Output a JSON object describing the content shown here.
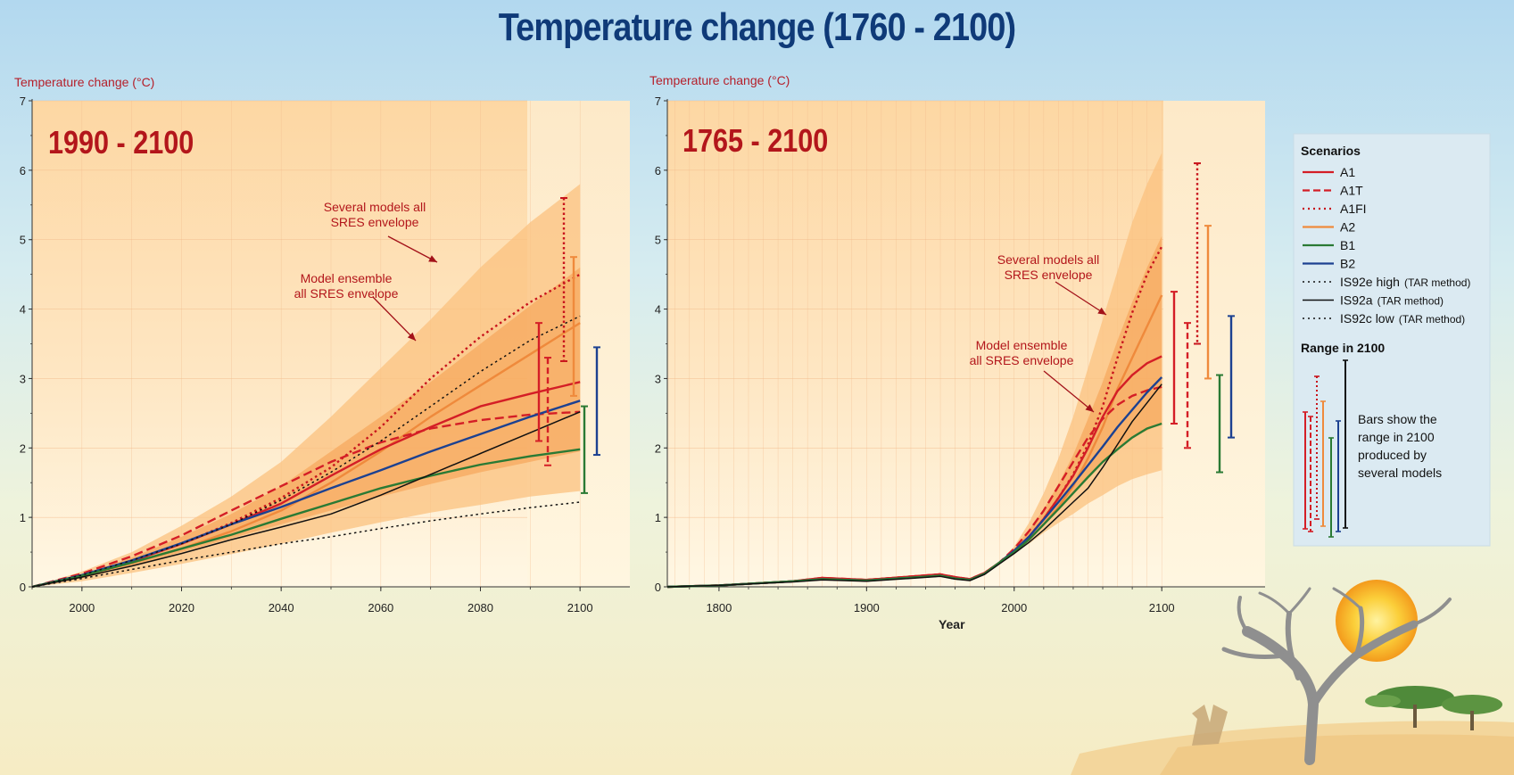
{
  "title": "Temperature change (1760 - 2100)",
  "chart_data": [
    {
      "type": "line",
      "title": "1990 - 2100",
      "ylabel": "Temperature change (°C)",
      "xlabel": "",
      "xlim": [
        1990,
        2110
      ],
      "ylim": [
        0,
        7
      ],
      "x_ticks": [
        "2000",
        "2020",
        "2040",
        "2060",
        "2080",
        "2100"
      ],
      "y_ticks": [
        "0",
        "1",
        "2",
        "3",
        "4",
        "5",
        "6",
        "7"
      ],
      "grid": true,
      "annotations": [
        {
          "text": [
            "Several models all",
            "SRES envelope"
          ],
          "at": [
            2070,
            4.9
          ]
        },
        {
          "text": [
            "Model ensemble",
            "all SRES envelope"
          ],
          "at": [
            2065,
            3.55
          ]
        }
      ],
      "envelopes": [
        {
          "name": "Several models all SRES envelope",
          "x": [
            1990,
            2000,
            2010,
            2020,
            2030,
            2040,
            2050,
            2060,
            2070,
            2080,
            2090,
            2100
          ],
          "low": [
            0,
            0.08,
            0.2,
            0.33,
            0.47,
            0.62,
            0.78,
            0.93,
            1.07,
            1.18,
            1.3,
            1.38
          ],
          "high": [
            0,
            0.22,
            0.5,
            0.88,
            1.3,
            1.8,
            2.45,
            3.15,
            3.85,
            4.6,
            5.25,
            5.8
          ]
        },
        {
          "name": "Model ensemble all SRES envelope",
          "x": [
            1990,
            2000,
            2010,
            2020,
            2030,
            2040,
            2050,
            2060,
            2070,
            2080,
            2090,
            2100
          ],
          "low": [
            0,
            0.12,
            0.3,
            0.5,
            0.7,
            0.9,
            1.1,
            1.3,
            1.48,
            1.65,
            1.8,
            1.95
          ],
          "high": [
            0,
            0.18,
            0.42,
            0.72,
            1.05,
            1.45,
            1.95,
            2.45,
            2.95,
            3.5,
            4.05,
            4.6
          ]
        }
      ],
      "series": [
        {
          "name": "A1FI",
          "style": "dotted",
          "color": "#c8141c",
          "x": [
            1990,
            2000,
            2010,
            2020,
            2030,
            2040,
            2050,
            2060,
            2070,
            2080,
            2090,
            2100
          ],
          "y": [
            0,
            0.16,
            0.37,
            0.62,
            0.92,
            1.28,
            1.72,
            2.3,
            3.0,
            3.6,
            4.1,
            4.5
          ]
        },
        {
          "name": "A2",
          "style": "solid",
          "color": "#ef8a3c",
          "x": [
            1990,
            2000,
            2010,
            2020,
            2030,
            2040,
            2050,
            2060,
            2070,
            2080,
            2090,
            2100
          ],
          "y": [
            0,
            0.16,
            0.34,
            0.55,
            0.8,
            1.1,
            1.5,
            1.95,
            2.45,
            2.9,
            3.35,
            3.8
          ]
        },
        {
          "name": "A1",
          "style": "solid",
          "color": "#d41e26",
          "x": [
            1990,
            2000,
            2010,
            2020,
            2030,
            2040,
            2050,
            2060,
            2070,
            2080,
            2090,
            2100
          ],
          "y": [
            0,
            0.16,
            0.37,
            0.62,
            0.9,
            1.2,
            1.6,
            1.98,
            2.3,
            2.6,
            2.78,
            2.95
          ]
        },
        {
          "name": "A1T",
          "style": "dashed",
          "color": "#d41e26",
          "x": [
            1990,
            2000,
            2010,
            2020,
            2030,
            2040,
            2050,
            2060,
            2070,
            2080,
            2090,
            2100
          ],
          "y": [
            0,
            0.19,
            0.44,
            0.74,
            1.1,
            1.45,
            1.8,
            2.08,
            2.28,
            2.4,
            2.48,
            2.52
          ]
        },
        {
          "name": "B2",
          "style": "solid",
          "color": "#1c4191",
          "x": [
            1990,
            2000,
            2010,
            2020,
            2030,
            2040,
            2050,
            2060,
            2070,
            2080,
            2090,
            2100
          ],
          "y": [
            0,
            0.17,
            0.38,
            0.63,
            0.9,
            1.15,
            1.42,
            1.68,
            1.95,
            2.2,
            2.45,
            2.68
          ]
        },
        {
          "name": "B1",
          "style": "solid",
          "color": "#2a7a34",
          "x": [
            1990,
            2000,
            2010,
            2020,
            2030,
            2040,
            2050,
            2060,
            2070,
            2080,
            2090,
            2100
          ],
          "y": [
            0,
            0.16,
            0.35,
            0.55,
            0.75,
            0.98,
            1.2,
            1.42,
            1.6,
            1.76,
            1.88,
            1.98
          ]
        },
        {
          "name": "IS92e high",
          "style": "dotted",
          "color": "#111111",
          "x": [
            1990,
            2000,
            2010,
            2020,
            2030,
            2040,
            2050,
            2060,
            2070,
            2080,
            2090,
            2100
          ],
          "y": [
            0,
            0.17,
            0.38,
            0.62,
            0.9,
            1.25,
            1.65,
            2.1,
            2.6,
            3.1,
            3.55,
            3.9
          ]
        },
        {
          "name": "IS92a",
          "style": "solid",
          "color": "#111111",
          "x": [
            1990,
            2000,
            2010,
            2020,
            2030,
            2040,
            2050,
            2060,
            2070,
            2080,
            2090,
            2100
          ],
          "y": [
            0,
            0.14,
            0.3,
            0.48,
            0.68,
            0.86,
            1.05,
            1.32,
            1.62,
            1.92,
            2.22,
            2.52
          ]
        },
        {
          "name": "IS92c low",
          "style": "dotted",
          "color": "#111111",
          "x": [
            1990,
            2000,
            2010,
            2020,
            2030,
            2040,
            2050,
            2060,
            2070,
            2080,
            2090,
            2100
          ],
          "y": [
            0,
            0.12,
            0.25,
            0.38,
            0.5,
            0.62,
            0.72,
            0.84,
            0.95,
            1.05,
            1.14,
            1.22
          ]
        }
      ],
      "ranges_2100": [
        {
          "name": "A1",
          "style": "solid",
          "color": "#d41e26",
          "low": 2.1,
          "high": 3.8
        },
        {
          "name": "A1T",
          "style": "dashed",
          "color": "#d41e26",
          "low": 1.75,
          "high": 3.3
        },
        {
          "name": "A1FI",
          "style": "dotted",
          "color": "#c8141c",
          "low": 3.25,
          "high": 5.6
        },
        {
          "name": "A2",
          "style": "solid",
          "color": "#ef8a3c",
          "low": 2.75,
          "high": 4.75
        },
        {
          "name": "B1",
          "style": "solid",
          "color": "#2a7a34",
          "low": 1.35,
          "high": 2.6
        },
        {
          "name": "B2",
          "style": "solid",
          "color": "#1c4191",
          "low": 1.9,
          "high": 3.45
        }
      ]
    },
    {
      "type": "line",
      "title": "1765 - 2100",
      "ylabel": "Temperature change (°C)",
      "xlabel": "Year",
      "xlim": [
        1765,
        2170
      ],
      "ylim": [
        0,
        7
      ],
      "x_ticks": [
        "1800",
        "1900",
        "2000",
        "2100"
      ],
      "y_ticks": [
        "0",
        "1",
        "2",
        "3",
        "4",
        "5",
        "6",
        "7"
      ],
      "grid": true,
      "annotations": [
        {
          "text": [
            "Several models all",
            "SRES envelope"
          ],
          "at": [
            2055,
            4.6
          ]
        },
        {
          "text": [
            "Model ensemble",
            "all SRES envelope"
          ],
          "at": [
            2020,
            3.4
          ]
        }
      ],
      "envelopes": [
        {
          "name": "Several models all SRES envelope",
          "x": [
            1990,
            2000,
            2010,
            2020,
            2030,
            2040,
            2050,
            2060,
            2070,
            2080,
            2090,
            2100
          ],
          "low": [
            0.35,
            0.5,
            0.62,
            0.78,
            0.92,
            1.05,
            1.2,
            1.32,
            1.45,
            1.55,
            1.62,
            1.68
          ],
          "high": [
            0.35,
            0.58,
            0.92,
            1.35,
            1.85,
            2.45,
            3.15,
            3.85,
            4.55,
            5.25,
            5.8,
            6.25
          ]
        },
        {
          "name": "Model ensemble all SRES envelope",
          "x": [
            1990,
            2000,
            2010,
            2020,
            2030,
            2040,
            2050,
            2060,
            2070,
            2080,
            2090,
            2100
          ],
          "low": [
            0.35,
            0.5,
            0.68,
            0.9,
            1.12,
            1.35,
            1.6,
            1.8,
            2.0,
            2.15,
            2.25,
            2.35
          ],
          "high": [
            0.35,
            0.55,
            0.82,
            1.12,
            1.48,
            1.9,
            2.42,
            2.95,
            3.55,
            4.1,
            4.6,
            5.05
          ]
        }
      ],
      "series": [
        {
          "name": "A1FI",
          "style": "dotted",
          "color": "#c8141c",
          "x": [
            1765,
            1800,
            1850,
            1870,
            1900,
            1950,
            1960,
            1970,
            1980,
            1990,
            2000,
            2010,
            2020,
            2030,
            2040,
            2050,
            2060,
            2070,
            2080,
            2090,
            2100
          ],
          "y": [
            0,
            0.02,
            0.08,
            0.12,
            0.1,
            0.18,
            0.13,
            0.1,
            0.2,
            0.35,
            0.52,
            0.72,
            0.98,
            1.28,
            1.62,
            2.05,
            2.6,
            3.3,
            3.95,
            4.5,
            4.9
          ]
        },
        {
          "name": "A2",
          "style": "solid",
          "color": "#ef8a3c",
          "x": [
            1765,
            1800,
            1850,
            1870,
            1900,
            1950,
            1960,
            1970,
            1980,
            1990,
            2000,
            2010,
            2020,
            2030,
            2040,
            2050,
            2060,
            2070,
            2080,
            2090,
            2100
          ],
          "y": [
            0,
            0.02,
            0.08,
            0.12,
            0.1,
            0.18,
            0.13,
            0.1,
            0.2,
            0.35,
            0.5,
            0.68,
            0.9,
            1.15,
            1.45,
            1.85,
            2.3,
            2.85,
            3.3,
            3.75,
            4.2
          ]
        },
        {
          "name": "A1",
          "style": "solid",
          "color": "#d41e26",
          "x": [
            1765,
            1800,
            1850,
            1870,
            1900,
            1950,
            1960,
            1970,
            1980,
            1990,
            2000,
            2010,
            2020,
            2030,
            2040,
            2050,
            2060,
            2070,
            2080,
            2090,
            2100
          ],
          "y": [
            0,
            0.02,
            0.08,
            0.13,
            0.1,
            0.18,
            0.14,
            0.11,
            0.2,
            0.35,
            0.52,
            0.72,
            0.98,
            1.28,
            1.6,
            2.0,
            2.45,
            2.82,
            3.05,
            3.22,
            3.32
          ]
        },
        {
          "name": "A1T",
          "style": "dashed",
          "color": "#d41e26",
          "x": [
            1765,
            1800,
            1850,
            1870,
            1900,
            1950,
            1960,
            1970,
            1980,
            1990,
            2000,
            2010,
            2020,
            2030,
            2040,
            2050,
            2060,
            2070,
            2080,
            2090,
            2100
          ],
          "y": [
            0,
            0.02,
            0.08,
            0.13,
            0.1,
            0.18,
            0.14,
            0.11,
            0.2,
            0.35,
            0.55,
            0.8,
            1.1,
            1.45,
            1.8,
            2.15,
            2.42,
            2.62,
            2.75,
            2.83,
            2.88
          ]
        },
        {
          "name": "B2",
          "style": "solid",
          "color": "#1c4191",
          "x": [
            1765,
            1800,
            1850,
            1870,
            1900,
            1950,
            1960,
            1970,
            1980,
            1990,
            2000,
            2010,
            2020,
            2030,
            2040,
            2050,
            2060,
            2070,
            2080,
            2090,
            2100
          ],
          "y": [
            0,
            0.02,
            0.08,
            0.11,
            0.09,
            0.16,
            0.12,
            0.1,
            0.19,
            0.35,
            0.52,
            0.72,
            0.97,
            1.22,
            1.48,
            1.75,
            2.02,
            2.3,
            2.55,
            2.8,
            3.02
          ]
        },
        {
          "name": "B1",
          "style": "solid",
          "color": "#2a7a34",
          "x": [
            1765,
            1800,
            1850,
            1870,
            1900,
            1950,
            1960,
            1970,
            1980,
            1990,
            2000,
            2010,
            2020,
            2030,
            2040,
            2050,
            2060,
            2070,
            2080,
            2090,
            2100
          ],
          "y": [
            0,
            0.02,
            0.08,
            0.11,
            0.09,
            0.16,
            0.12,
            0.1,
            0.19,
            0.35,
            0.5,
            0.68,
            0.9,
            1.12,
            1.35,
            1.58,
            1.8,
            1.98,
            2.15,
            2.28,
            2.35
          ]
        },
        {
          "name": "IS92a",
          "style": "solid",
          "color": "#111111",
          "x": [
            1765,
            1800,
            1850,
            1870,
            1900,
            1950,
            1960,
            1970,
            1980,
            1990,
            2000,
            2010,
            2020,
            2030,
            2040,
            2050,
            2060,
            2070,
            2080,
            2090,
            2100
          ],
          "y": [
            0,
            0.02,
            0.07,
            0.1,
            0.08,
            0.15,
            0.11,
            0.09,
            0.18,
            0.33,
            0.48,
            0.64,
            0.82,
            1.02,
            1.22,
            1.42,
            1.72,
            2.05,
            2.38,
            2.65,
            2.92
          ]
        }
      ],
      "ranges_2100": [
        {
          "name": "A1",
          "style": "solid",
          "color": "#d41e26",
          "low": 2.35,
          "high": 4.25
        },
        {
          "name": "A1T",
          "style": "dashed",
          "color": "#d41e26",
          "low": 2.0,
          "high": 3.8
        },
        {
          "name": "A1FI",
          "style": "dotted",
          "color": "#c8141c",
          "low": 3.5,
          "high": 6.1
        },
        {
          "name": "A2",
          "style": "solid",
          "color": "#ef8a3c",
          "low": 3.0,
          "high": 5.2
        },
        {
          "name": "B1",
          "style": "solid",
          "color": "#2a7a34",
          "low": 1.65,
          "high": 3.05
        },
        {
          "name": "B2",
          "style": "solid",
          "color": "#1c4191",
          "low": 2.15,
          "high": 3.9
        }
      ]
    }
  ],
  "legend": {
    "heading": "Scenarios",
    "items": [
      {
        "label": "A1",
        "note": "",
        "style": "solid",
        "color": "#d41e26"
      },
      {
        "label": "A1T",
        "note": "",
        "style": "dashed",
        "color": "#d41e26"
      },
      {
        "label": "A1FI",
        "note": "",
        "style": "dotted",
        "color": "#c8141c"
      },
      {
        "label": "A2",
        "note": "",
        "style": "solid",
        "color": "#ef8a3c"
      },
      {
        "label": "B1",
        "note": "",
        "style": "solid",
        "color": "#2a7a34"
      },
      {
        "label": "B2",
        "note": "",
        "style": "solid",
        "color": "#1c4191"
      },
      {
        "label": "IS92e high",
        "note": "(TAR method)",
        "style": "dotted",
        "color": "#111111"
      },
      {
        "label": "IS92a",
        "note": "(TAR method)",
        "style": "solid",
        "color": "#111111"
      },
      {
        "label": "IS92c low",
        "note": "(TAR method)",
        "style": "dotted",
        "color": "#111111"
      }
    ],
    "range_heading": "Range in 2100",
    "range_text": [
      "Bars show the",
      "range in 2100",
      "produced by",
      "several models"
    ]
  }
}
